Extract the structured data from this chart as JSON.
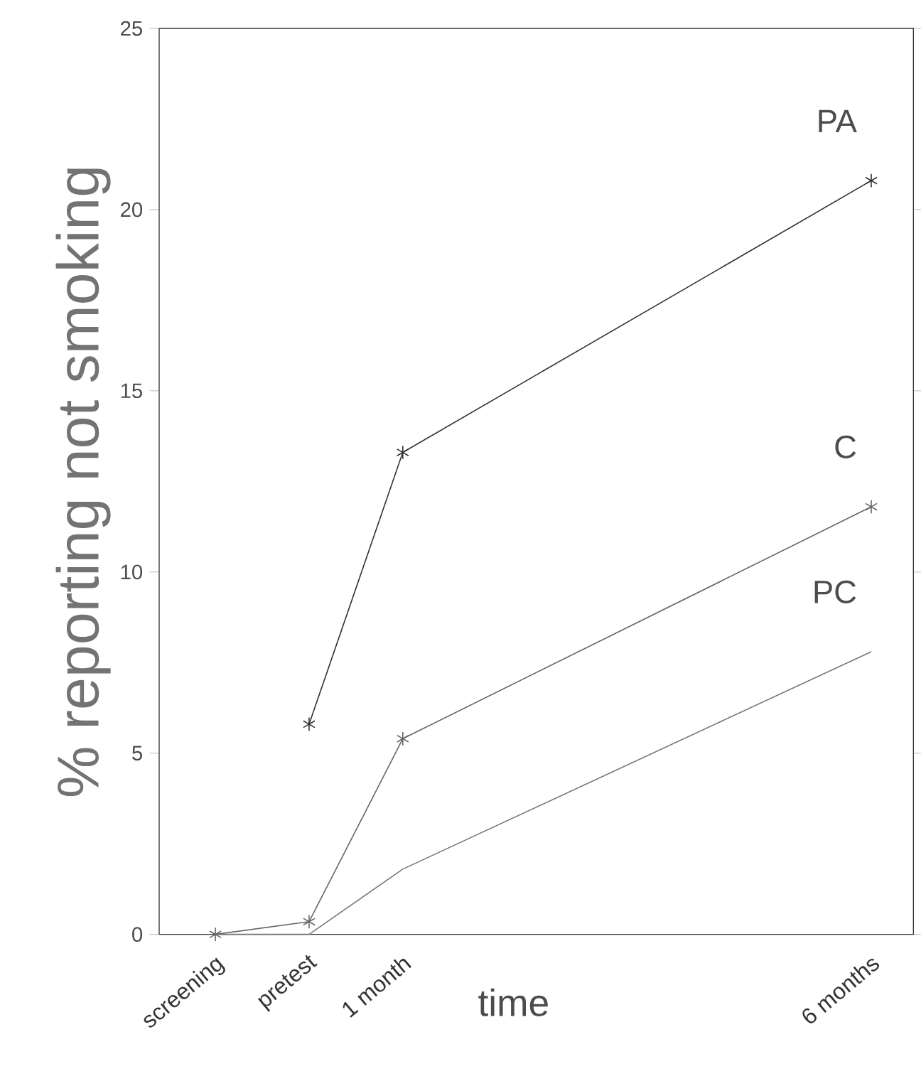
{
  "chart_data": {
    "type": "line",
    "xlabel": "time",
    "ylabel": "% reporting not smoking",
    "x": [
      -1,
      0,
      1,
      6
    ],
    "xticks": [
      {
        "value": -1,
        "label": "screening"
      },
      {
        "value": 0,
        "label": "pretest"
      },
      {
        "value": 1,
        "label": "1 month"
      },
      {
        "value": 6,
        "label": "6 months"
      }
    ],
    "xlim": [
      -1.6,
      6.45
    ],
    "ylim": [
      0,
      25
    ],
    "yticks": [
      0,
      5,
      10,
      15,
      20,
      25
    ],
    "series": [
      {
        "name": "PA",
        "color": "#333333",
        "marker": "cross",
        "values": [
          null,
          5.8,
          13.3,
          20.8
        ]
      },
      {
        "name": "C",
        "color": "#666666",
        "marker": "cross",
        "values": [
          0,
          0.35,
          5.4,
          11.8
        ]
      },
      {
        "name": "PC",
        "color": "#777777",
        "marker": "none",
        "values": [
          0,
          0,
          1.8,
          7.8
        ]
      }
    ],
    "legend": "right",
    "grid": false
  }
}
